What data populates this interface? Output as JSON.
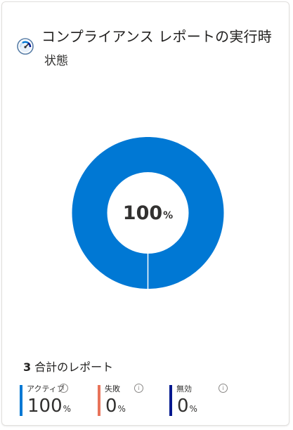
{
  "header": {
    "title": "コンプライアンス レポートの実行時",
    "subtitle": "状態"
  },
  "donut": {
    "center_value": "100",
    "center_unit": "%"
  },
  "chart_data": {
    "type": "pie",
    "categories": [
      "アクティブ",
      "失敗",
      "無効"
    ],
    "values": [
      100,
      0,
      0
    ],
    "colors": [
      "#0078d4",
      "#e8735a",
      "#00188f"
    ]
  },
  "summary": {
    "total_count": "3",
    "total_label": "合計のレポート"
  },
  "stats": [
    {
      "label": "アクティブ",
      "value": "100",
      "unit": "%",
      "color": "#0078d4"
    },
    {
      "label": "失敗",
      "value": "0",
      "unit": "%",
      "color": "#e8735a"
    },
    {
      "label": "無効",
      "value": "0",
      "unit": "%",
      "color": "#00188f"
    }
  ],
  "info_glyph": "i"
}
